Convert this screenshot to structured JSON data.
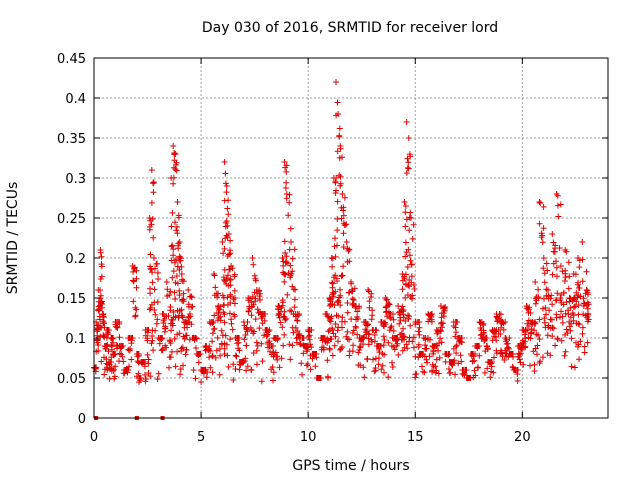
{
  "chart_data": {
    "type": "scatter",
    "title": "Day 030 of 2016, SRMTID for receiver lord",
    "xlabel": "GPS time / hours",
    "ylabel": "SRMTID / TECUs",
    "xlim": [
      0,
      24
    ],
    "ylim": [
      0,
      0.45
    ],
    "xticks": [
      0,
      5,
      10,
      15,
      20
    ],
    "xtick_labels": [
      "0",
      "5",
      "10",
      "15",
      "20"
    ],
    "yticks": [
      0,
      0.05,
      0.1,
      0.15,
      0.2,
      0.25,
      0.3,
      0.35,
      0.4,
      0.45
    ],
    "ytick_labels": [
      "0",
      "0.05",
      "0.1",
      "0.15",
      "0.2",
      "0.25",
      "0.3",
      "0.35",
      "0.4",
      "0.45"
    ],
    "grid": true,
    "marker": "plus",
    "color": "#e00000",
    "x_range_of_data": [
      0,
      23
    ],
    "series": [
      {
        "name": "SRMTID",
        "x": [
          0.0,
          0.1,
          0.2,
          0.3,
          0.4,
          0.5,
          0.6,
          0.7,
          0.8,
          0.9,
          1.0,
          1.2,
          1.4,
          1.6,
          1.8,
          2.0,
          2.1,
          2.2,
          2.4,
          2.6,
          2.7,
          2.8,
          3.0,
          3.2,
          3.4,
          3.6,
          3.7,
          3.8,
          3.9,
          4.0,
          4.1,
          4.2,
          4.4,
          4.6,
          4.8,
          5.0,
          5.2,
          5.4,
          5.6,
          5.8,
          6.0,
          6.1,
          6.2,
          6.3,
          6.4,
          6.6,
          6.8,
          7.0,
          7.2,
          7.4,
          7.6,
          7.8,
          8.0,
          8.2,
          8.4,
          8.6,
          8.8,
          8.9,
          9.0,
          9.2,
          9.4,
          9.6,
          9.8,
          10.0,
          10.2,
          10.4,
          10.6,
          10.8,
          11.0,
          11.1,
          11.2,
          11.3,
          11.4,
          11.5,
          11.6,
          11.8,
          12.0,
          12.2,
          12.4,
          12.6,
          12.8,
          13.0,
          13.2,
          13.4,
          13.6,
          13.8,
          14.0,
          14.2,
          14.4,
          14.5,
          14.6,
          14.7,
          14.8,
          15.0,
          15.2,
          15.4,
          15.6,
          15.8,
          16.0,
          16.2,
          16.4,
          16.6,
          16.8,
          17.0,
          17.2,
          17.4,
          17.6,
          17.8,
          18.0,
          18.2,
          18.4,
          18.6,
          18.8,
          19.0,
          19.2,
          19.4,
          19.6,
          19.8,
          20.0,
          20.2,
          20.4,
          20.6,
          20.8,
          21.0,
          21.2,
          21.4,
          21.6,
          21.8,
          22.0,
          22.2,
          22.4,
          22.6,
          22.8,
          23.0
        ],
        "y": [
          0.063,
          0.12,
          0.16,
          0.21,
          0.13,
          0.09,
          0.11,
          0.07,
          0.1,
          0.08,
          0.12,
          0.09,
          0.06,
          0.1,
          0.19,
          0.08,
          0.05,
          0.07,
          0.11,
          0.25,
          0.31,
          0.2,
          0.1,
          0.13,
          0.17,
          0.3,
          0.34,
          0.33,
          0.27,
          0.22,
          0.18,
          0.12,
          0.16,
          0.1,
          0.08,
          0.06,
          0.09,
          0.12,
          0.18,
          0.14,
          0.22,
          0.32,
          0.29,
          0.23,
          0.19,
          0.1,
          0.07,
          0.12,
          0.15,
          0.2,
          0.16,
          0.13,
          0.11,
          0.09,
          0.1,
          0.14,
          0.2,
          0.32,
          0.28,
          0.22,
          0.13,
          0.1,
          0.09,
          0.11,
          0.08,
          0.05,
          0.1,
          0.13,
          0.15,
          0.2,
          0.3,
          0.42,
          0.38,
          0.34,
          0.28,
          0.22,
          0.17,
          0.14,
          0.1,
          0.12,
          0.16,
          0.11,
          0.09,
          0.12,
          0.15,
          0.13,
          0.1,
          0.14,
          0.18,
          0.27,
          0.37,
          0.35,
          0.25,
          0.12,
          0.08,
          0.1,
          0.13,
          0.09,
          0.11,
          0.14,
          0.08,
          0.07,
          0.12,
          0.1,
          0.06,
          0.05,
          0.08,
          0.09,
          0.12,
          0.1,
          0.07,
          0.11,
          0.13,
          0.12,
          0.1,
          0.08,
          0.06,
          0.09,
          0.11,
          0.14,
          0.12,
          0.17,
          0.27,
          0.2,
          0.16,
          0.23,
          0.28,
          0.19,
          0.21,
          0.15,
          0.18,
          0.2,
          0.22,
          0.16
        ],
        "zeros_at_x": [
          0.1,
          2.0,
          3.2
        ]
      }
    ]
  }
}
